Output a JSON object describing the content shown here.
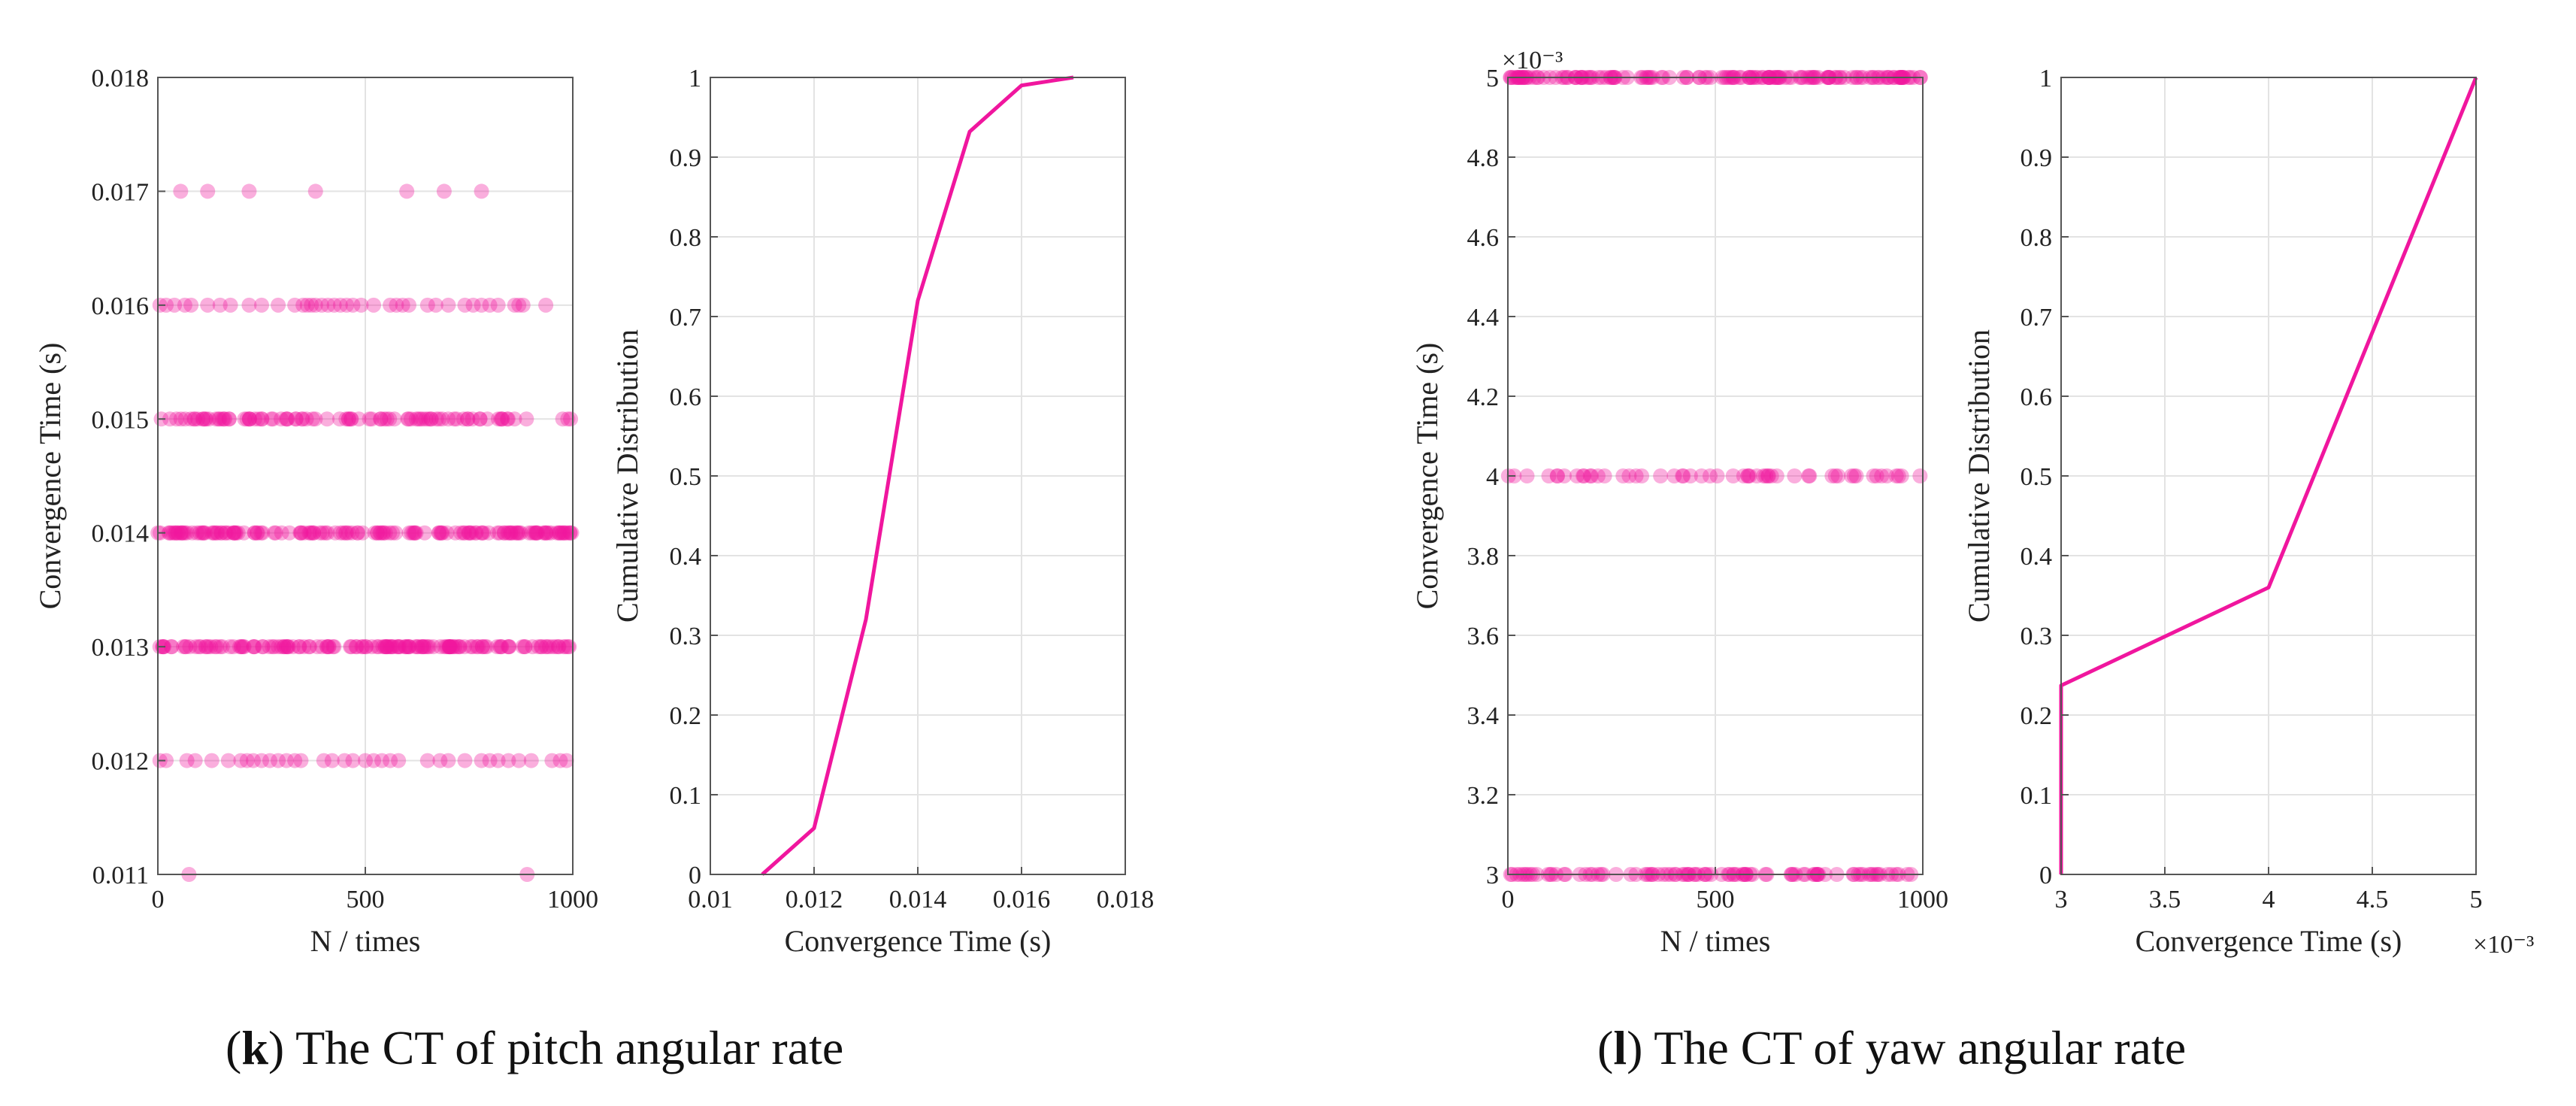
{
  "chart_data": [
    {
      "type": "scatter",
      "xlabel": "N / times",
      "ylabel": "Convergence Time (s)",
      "xlim": [
        0,
        1000
      ],
      "ylim": [
        0.011,
        0.018
      ],
      "xticks": [
        0,
        500,
        1000
      ],
      "xtick_labels": [
        "0",
        "500",
        "1000"
      ],
      "yticks": [
        0.011,
        0.012,
        0.013,
        0.014,
        0.015,
        0.016,
        0.017,
        0.018
      ],
      "ytick_labels": [
        "0.011",
        "0.012",
        "0.013",
        "0.014",
        "0.015",
        "0.016",
        "0.017",
        "0.018"
      ],
      "grid": true,
      "color": "#f0169e",
      "levels": [
        {
          "y": 0.017,
          "x": [
            55,
            120,
            220,
            380,
            600,
            690,
            780
          ]
        },
        {
          "y": 0.016,
          "x": [
            5,
            20,
            40,
            65,
            80,
            120,
            150,
            175,
            220,
            250,
            290,
            330,
            350,
            360,
            370,
            380,
            395,
            410,
            425,
            440,
            455,
            470,
            490,
            520,
            560,
            575,
            590,
            605,
            650,
            670,
            700,
            740,
            760,
            780,
            800,
            820,
            860,
            870,
            880,
            935
          ]
        },
        {
          "y": 0.015,
          "x_range": [
            0,
            1000
          ],
          "density": "dense"
        },
        {
          "y": 0.014,
          "x_range": [
            0,
            1000
          ],
          "density": "very dense"
        },
        {
          "y": 0.013,
          "x_range": [
            0,
            1000
          ],
          "density": "very dense"
        },
        {
          "y": 0.012,
          "x": [
            5,
            20,
            70,
            90,
            130,
            170,
            200,
            215,
            230,
            250,
            270,
            290,
            310,
            330,
            345,
            400,
            420,
            450,
            470,
            500,
            520,
            540,
            560,
            580,
            650,
            680,
            700,
            740,
            780,
            800,
            820,
            845,
            870,
            900,
            950,
            970,
            985
          ]
        },
        {
          "y": 0.011,
          "x": [
            75,
            890
          ]
        }
      ]
    },
    {
      "type": "line",
      "xlabel": "Convergence Time (s)",
      "ylabel": "Cumulative Distribution",
      "xlim": [
        0.01,
        0.018
      ],
      "ylim": [
        0,
        1
      ],
      "xticks": [
        0.01,
        0.012,
        0.014,
        0.016,
        0.018
      ],
      "xtick_labels": [
        "0.01",
        "0.012",
        "0.014",
        "0.016",
        "0.018"
      ],
      "yticks": [
        0,
        0.1,
        0.2,
        0.3,
        0.4,
        0.5,
        0.6,
        0.7,
        0.8,
        0.9,
        1
      ],
      "ytick_labels": [
        "0",
        "0.1",
        "0.2",
        "0.3",
        "0.4",
        "0.5",
        "0.6",
        "0.7",
        "0.8",
        "0.9",
        "1"
      ],
      "grid": true,
      "color": "#f0169e",
      "x": [
        0.011,
        0.012,
        0.013,
        0.014,
        0.015,
        0.016,
        0.017
      ],
      "y": [
        0,
        0.058,
        0.32,
        0.72,
        0.932,
        0.99,
        1
      ]
    },
    {
      "type": "scatter",
      "xlabel": "N / times",
      "ylabel": "Convergence Time (s)",
      "xlim": [
        0,
        1000
      ],
      "ylim": [
        3,
        5
      ],
      "y_scale_label": "×10⁻³",
      "xticks": [
        0,
        500,
        1000
      ],
      "xtick_labels": [
        "0",
        "500",
        "1000"
      ],
      "yticks": [
        3,
        3.2,
        3.4,
        3.6,
        3.8,
        4,
        4.2,
        4.4,
        4.6,
        4.8,
        5
      ],
      "ytick_labels": [
        "3",
        "3.2",
        "3.4",
        "3.6",
        "3.8",
        "4",
        "4.2",
        "4.4",
        "4.6",
        "4.8",
        "5"
      ],
      "grid": true,
      "color": "#f0169e",
      "levels": [
        {
          "y": 5,
          "x_range": [
            0,
            1000
          ],
          "density": "very dense"
        },
        {
          "y": 4,
          "x_range": [
            0,
            1000
          ],
          "density": "medium"
        },
        {
          "y": 3,
          "x_range": [
            0,
            1000
          ],
          "density": "dense"
        }
      ]
    },
    {
      "type": "line",
      "xlabel": "Convergence Time (s)",
      "x_scale_label": "×10⁻³",
      "ylabel": "Cumulative Distribution",
      "xlim": [
        3,
        5
      ],
      "ylim": [
        0,
        1
      ],
      "xticks": [
        3,
        3.5,
        4,
        4.5,
        5
      ],
      "xtick_labels": [
        "3",
        "3.5",
        "4",
        "4.5",
        "5"
      ],
      "yticks": [
        0,
        0.1,
        0.2,
        0.3,
        0.4,
        0.5,
        0.6,
        0.7,
        0.8,
        0.9,
        1
      ],
      "ytick_labels": [
        "0",
        "0.1",
        "0.2",
        "0.3",
        "0.4",
        "0.5",
        "0.6",
        "0.7",
        "0.8",
        "0.9",
        "1"
      ],
      "grid": true,
      "color": "#f0169e",
      "x": [
        3,
        3,
        4,
        5
      ],
      "y": [
        0,
        0.237,
        0.36,
        1
      ]
    }
  ],
  "captions": {
    "k": {
      "letter": "k",
      "text": ") The CT of pitch angular rate"
    },
    "l": {
      "letter": "l",
      "text": ") The CT of yaw angular rate"
    }
  }
}
